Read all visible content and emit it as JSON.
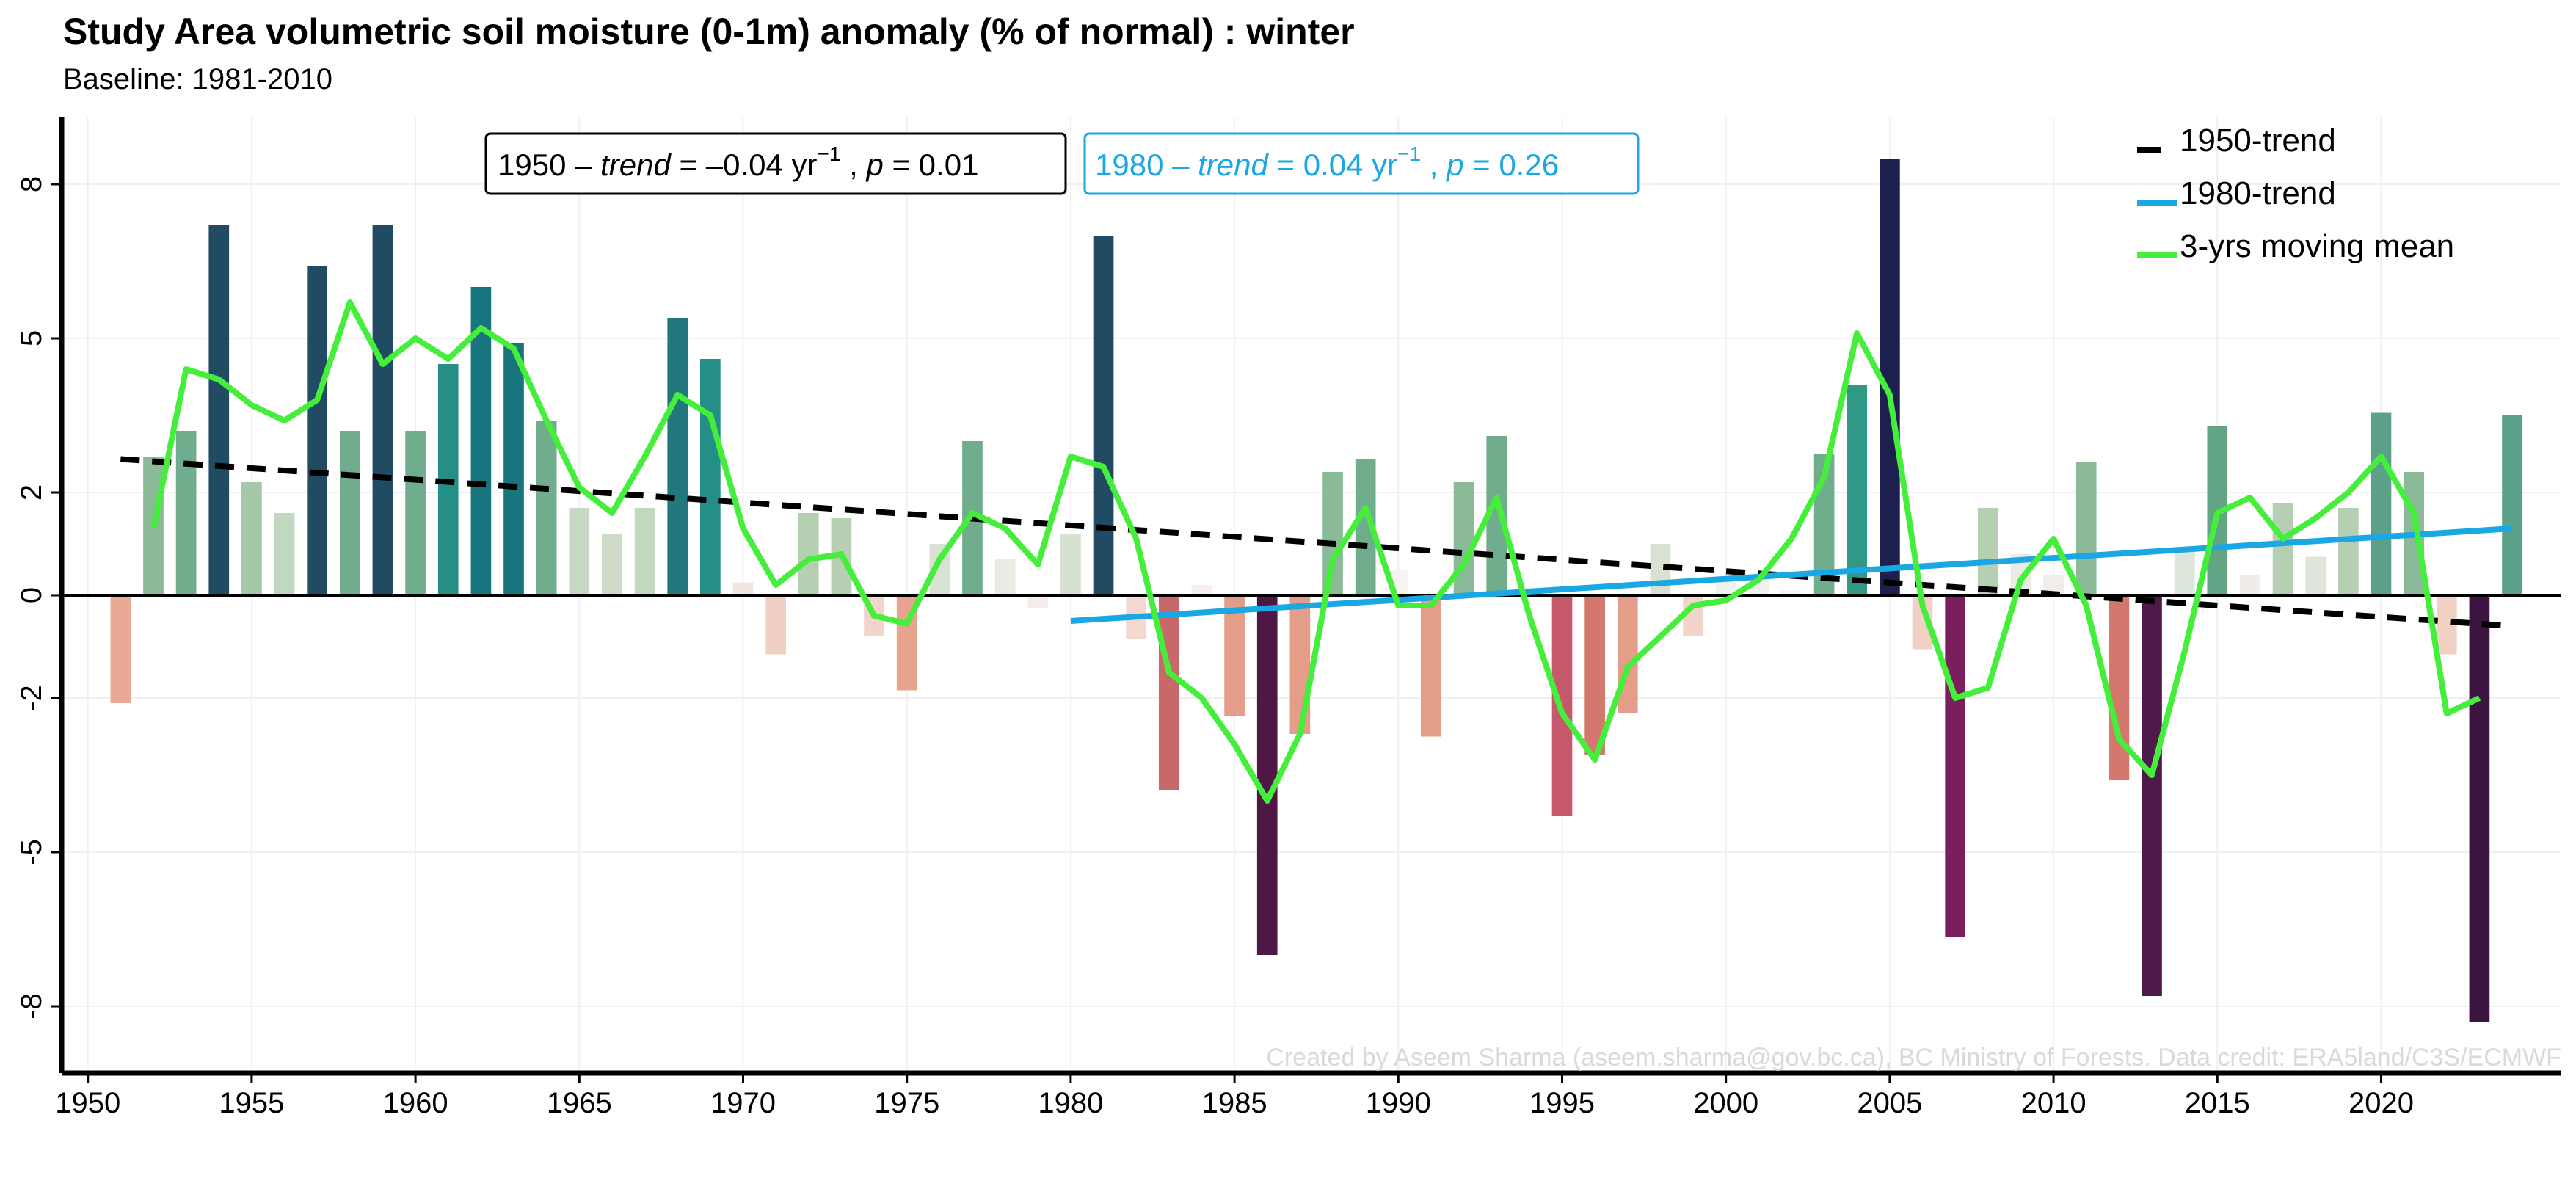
{
  "chart_data": {
    "type": "bar",
    "title": "Study Area volumetric soil moisture (0-1m) anomaly (% of normal) : winter",
    "subtitle": "Baseline: 1981-2010",
    "xlabel": "",
    "ylabel": "",
    "xlim": [
      1949.2,
      2025.5
    ],
    "ylim": [
      -9.3,
      9.3
    ],
    "x_ticks": [
      1950,
      1955,
      1960,
      1965,
      1970,
      1975,
      1980,
      1985,
      1990,
      1995,
      2000,
      2005,
      2010,
      2015,
      2020
    ],
    "y_ticks": [
      8,
      5,
      2,
      0,
      -2,
      -5,
      -8
    ],
    "grid": true,
    "legend_position": "top-right",
    "series": [
      {
        "name": "anomaly",
        "x": [
          1951,
          1952,
          1953,
          1954,
          1955,
          1956,
          1957,
          1958,
          1959,
          1960,
          1961,
          1962,
          1963,
          1964,
          1965,
          1966,
          1967,
          1968,
          1969,
          1970,
          1971,
          1972,
          1973,
          1974,
          1975,
          1976,
          1977,
          1978,
          1979,
          1980,
          1981,
          1982,
          1983,
          1984,
          1985,
          1986,
          1987,
          1988,
          1989,
          1990,
          1991,
          1992,
          1993,
          1994,
          1995,
          1996,
          1997,
          1998,
          1999,
          2000,
          2001,
          2002,
          2003,
          2004,
          2005,
          2006,
          2007,
          2008,
          2009,
          2010,
          2011,
          2012,
          2013,
          2014,
          2015,
          2016,
          2017,
          2018,
          2019,
          2020,
          2021,
          2022,
          2023,
          2024
        ],
        "values": [
          -2.1,
          2.7,
          3.2,
          7.2,
          2.2,
          1.6,
          6.4,
          3.2,
          7.2,
          3.2,
          4.5,
          6.0,
          4.9,
          3.4,
          1.7,
          1.2,
          1.7,
          5.4,
          4.6,
          0.25,
          -1.15,
          1.6,
          1.5,
          -0.8,
          -1.85,
          1.0,
          3.0,
          0.7,
          -0.25,
          1.2,
          7.0,
          -0.85,
          -3.8,
          0.2,
          -2.35,
          -7.0,
          -2.7,
          2.4,
          2.65,
          0.5,
          -2.75,
          2.2,
          3.1,
          0.15,
          -4.3,
          -3.1,
          -2.3,
          1.0,
          -0.8,
          0.3,
          0.3,
          0.1,
          2.75,
          4.1,
          8.5,
          -1.05,
          -6.65,
          1.7,
          0.8,
          0.4,
          2.6,
          -3.6,
          -7.8,
          0.9,
          3.3,
          0.4,
          1.8,
          0.75,
          1.7,
          3.55,
          2.4,
          -1.15,
          -8.3,
          3.5
        ],
        "colors": [
          "#e8aa94",
          "#8aba97",
          "#70ad8d",
          "#214b63",
          "#a4c8a8",
          "#c2d7bf",
          "#214b63",
          "#70ad8d",
          "#214b63",
          "#70ad8d",
          "#258e87",
          "#18757e",
          "#18757e",
          "#70ad8d",
          "#c6d8c2",
          "#ccdbc6",
          "#c2d7bf",
          "#22777f",
          "#258e87",
          "#f1e6e2",
          "#f0d0c2",
          "#b4cfb2",
          "#b7d0b4",
          "#f1d5cb",
          "#e8a38e",
          "#d8e2d2",
          "#70ad8d",
          "#e9ece2",
          "#f5ecea",
          "#d7e1d1",
          "#214b63",
          "#f2d8cf",
          "#c96868",
          "#f7f0ee",
          "#e39d89",
          "#4f1746",
          "#e39d89",
          "#8aba97",
          "#70ad8d",
          "#f7f3f1",
          "#e39d89",
          "#8aba97",
          "#70ad8d",
          "#f7f3f1",
          "#c5586b",
          "#d4786e",
          "#e39d89",
          "#d8e2d2",
          "#f1d5cb",
          "#f1f1ee",
          "#f1f1ee",
          "#f5f5f3",
          "#70ad8d",
          "#329886",
          "#1d1f4e",
          "#f1d1c5",
          "#7b1e5e",
          "#b4cfb2",
          "#e9ece2",
          "#f1ede9",
          "#8aba97",
          "#d4786e",
          "#4e1a4a",
          "#dde6da",
          "#62a584",
          "#f2ece8",
          "#b4cfb2",
          "#dfe6d9",
          "#b4cfb2",
          "#5aa187",
          "#8aba97",
          "#f0d2c5",
          "#3b1440",
          "#5aa187"
        ]
      },
      {
        "name": "3-yrs moving mean",
        "x": [
          1952,
          1953,
          1954,
          1955,
          1956,
          1957,
          1958,
          1959,
          1960,
          1961,
          1962,
          1963,
          1964,
          1965,
          1966,
          1967,
          1968,
          1969,
          1970,
          1971,
          1972,
          1973,
          1974,
          1975,
          1976,
          1977,
          1978,
          1979,
          1980,
          1981,
          1982,
          1983,
          1984,
          1985,
          1986,
          1987,
          1988,
          1989,
          1990,
          1991,
          1992,
          1993,
          1994,
          1995,
          1996,
          1997,
          1998,
          1999,
          2000,
          2001,
          2002,
          2003,
          2004,
          2005,
          2006,
          2007,
          2008,
          2009,
          2010,
          2011,
          2012,
          2013,
          2014,
          2015,
          2016,
          2017,
          2018,
          2019,
          2020,
          2021,
          2022,
          2023
        ],
        "values": [
          1.3,
          4.4,
          4.2,
          3.7,
          3.4,
          3.8,
          5.7,
          4.5,
          5.0,
          4.6,
          5.2,
          4.8,
          3.4,
          2.1,
          1.6,
          2.7,
          3.9,
          3.5,
          1.3,
          0.2,
          0.7,
          0.8,
          -0.4,
          -0.55,
          0.7,
          1.6,
          1.3,
          0.6,
          2.7,
          2.5,
          1.1,
          -1.5,
          -2.0,
          -2.9,
          -4.0,
          -2.7,
          0.7,
          1.7,
          -0.2,
          -0.2,
          0.6,
          1.9,
          -0.4,
          -2.3,
          -3.2,
          -1.4,
          -0.8,
          -0.2,
          -0.1,
          0.3,
          1.1,
          2.3,
          5.1,
          3.9,
          -0.2,
          -2.0,
          -1.8,
          0.3,
          1.1,
          -0.2,
          -2.8,
          -3.5,
          -1.1,
          1.6,
          1.9,
          1.1,
          1.5,
          2.0,
          2.7,
          1.6,
          -2.3,
          -2.0
        ]
      },
      {
        "name": "1950-trend",
        "x": [
          1951,
          2024
        ],
        "values": [
          2.65,
          -0.6
        ]
      },
      {
        "name": "1980-trend",
        "x": [
          1980,
          2024
        ],
        "values": [
          -0.5,
          1.3
        ]
      }
    ],
    "legend": [
      "1950-trend",
      "1980-trend",
      "3-yrs moving mean"
    ],
    "annotations": {
      "trend_1950": {
        "prefix": "1950 – ",
        "trend_label": "trend",
        "trend_value": " = –0.04 yr",
        "exponent": "−1",
        "sep": " , ",
        "p_label": "p",
        "p_value": " = 0.01"
      },
      "trend_1980": {
        "prefix": "1980 – ",
        "trend_label": "trend",
        "trend_value": " = 0.04 yr",
        "exponent": "−1",
        "sep": " , ",
        "p_label": "p",
        "p_value": " = 0.26"
      },
      "credit": "Created by Aseem Sharma (aseem.sharma@gov.bc.ca), BC Ministry of Forests. Data credit: ERA5land/C3S/ECMWF"
    }
  },
  "colors": {
    "trend_1950": "#000000",
    "trend_1980": "#1aa7e4",
    "moving_mean": "#44ee3a",
    "grid": "#f0f0f0"
  }
}
